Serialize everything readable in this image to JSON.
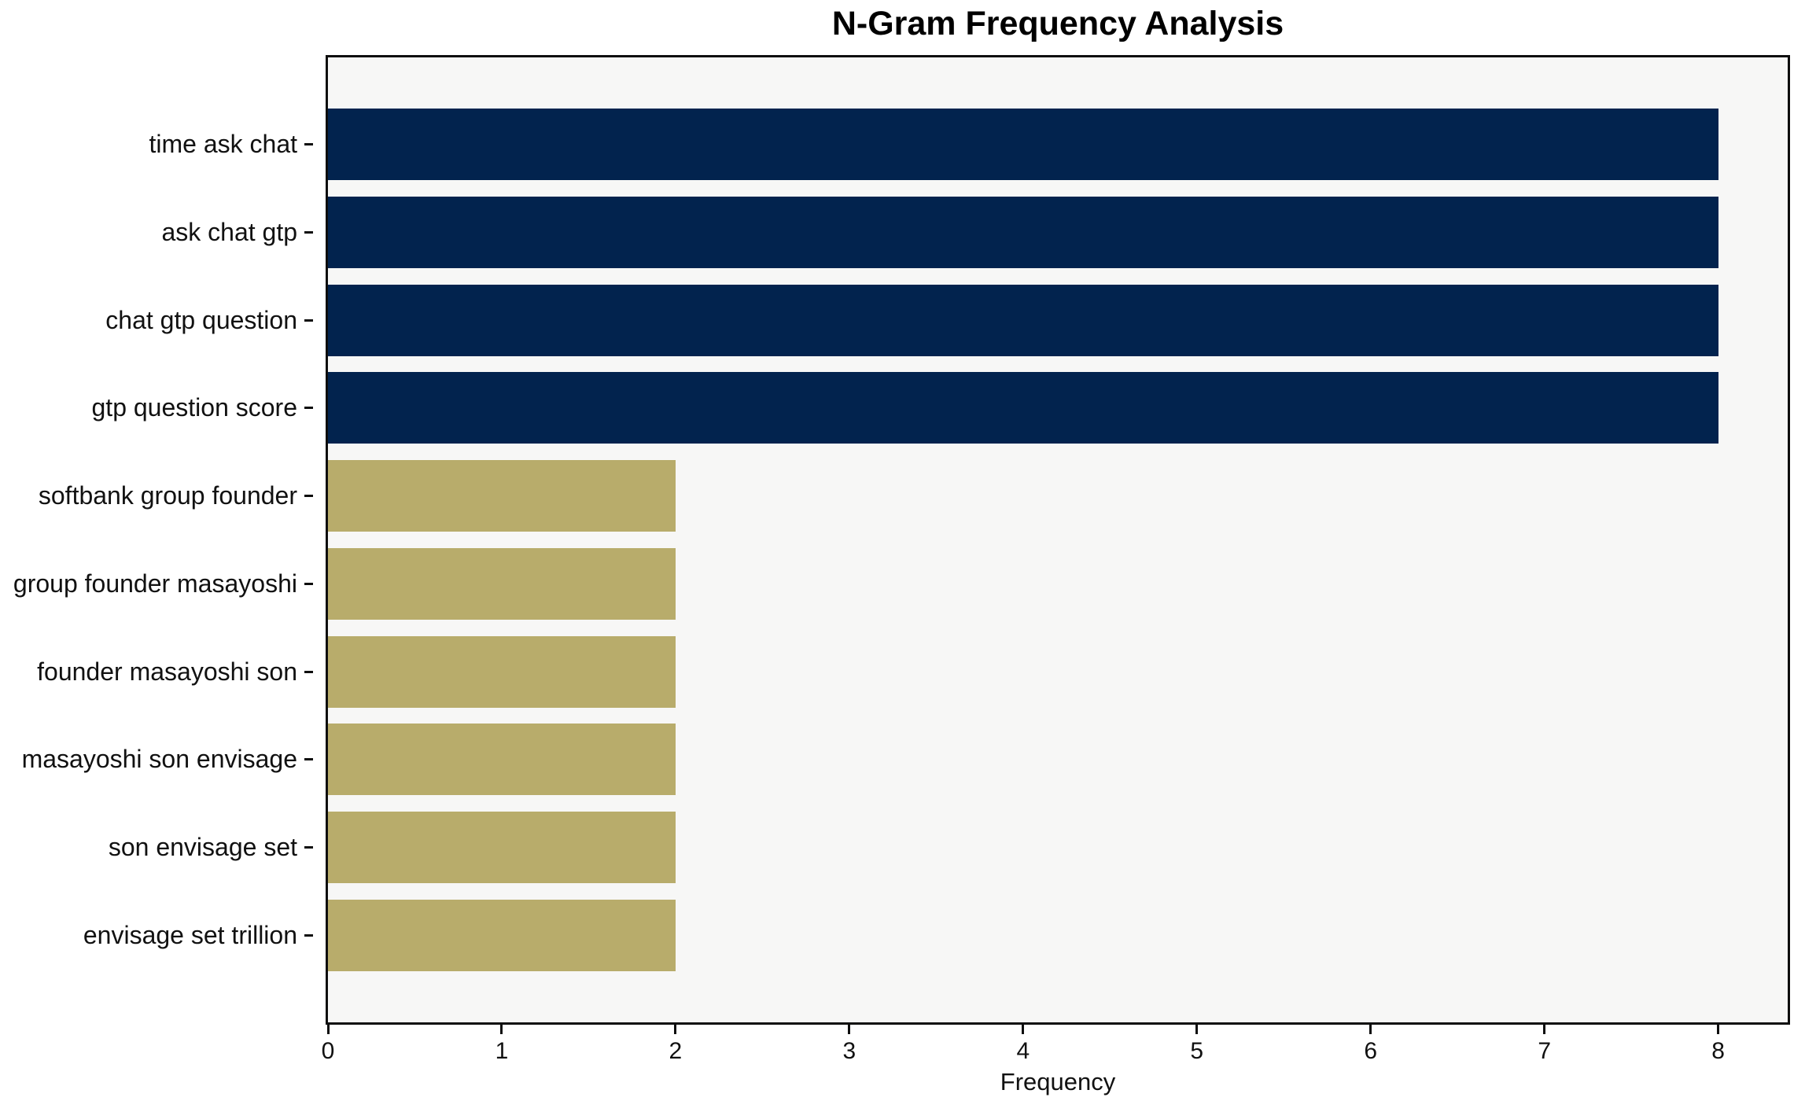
{
  "chart_data": {
    "type": "bar",
    "orientation": "horizontal",
    "title": "N-Gram Frequency Analysis",
    "xlabel": "Frequency",
    "ylabel": "",
    "categories": [
      "time ask chat",
      "ask chat gtp",
      "chat gtp question",
      "gtp question score",
      "softbank group founder",
      "group founder masayoshi",
      "founder masayoshi son",
      "masayoshi son envisage",
      "son envisage set",
      "envisage set trillion"
    ],
    "values": [
      8,
      8,
      8,
      8,
      2,
      2,
      2,
      2,
      2,
      2
    ],
    "bar_colors": [
      "#02234e",
      "#02234e",
      "#02234e",
      "#02234e",
      "#b8ac6b",
      "#b8ac6b",
      "#b8ac6b",
      "#b8ac6b",
      "#b8ac6b",
      "#b8ac6b"
    ],
    "xlim": [
      0,
      8.4
    ],
    "xticks": [
      0,
      1,
      2,
      3,
      4,
      5,
      6,
      7,
      8
    ],
    "grid": false,
    "legend": false,
    "colors": {
      "navy": "#02234e",
      "khaki": "#b8ac6b",
      "plot_background": "#f7f7f6",
      "figure_background": "#ffffff",
      "spine": "#0e0e0e",
      "text": "#111111"
    }
  }
}
